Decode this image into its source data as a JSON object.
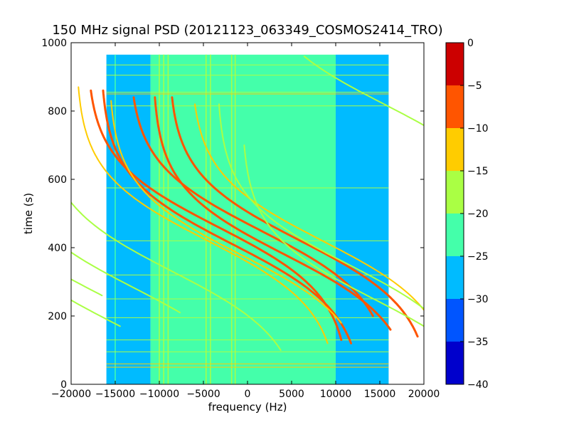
{
  "chart_data": {
    "type": "heatmap",
    "title": "150 MHz signal PSD (20121123_063349_COSMOS2414_TRO)",
    "xlabel": "frequency (Hz)",
    "ylabel": "time (s)",
    "xlim": [
      -20000,
      20000
    ],
    "ylim": [
      0,
      1000
    ],
    "xticks": [
      -20000,
      -15000,
      -10000,
      -5000,
      0,
      5000,
      10000,
      15000,
      20000
    ],
    "yticks": [
      0,
      200,
      400,
      600,
      800,
      1000
    ],
    "data_extent": {
      "x": [
        -16000,
        16000
      ],
      "y": [
        0,
        965
      ]
    },
    "colorbar": {
      "ticks": [
        0,
        -5,
        -10,
        -15,
        -20,
        -25,
        -30,
        -35,
        -40
      ],
      "levels": [
        {
          "range": [
            -40,
            -35
          ],
          "color": "#0000cc"
        },
        {
          "range": [
            -35,
            -30
          ],
          "color": "#0055ff"
        },
        {
          "range": [
            -30,
            -25
          ],
          "color": "#00bbff"
        },
        {
          "range": [
            -25,
            -20
          ],
          "color": "#44ffaa"
        },
        {
          "range": [
            -20,
            -15
          ],
          "color": "#aaff44"
        },
        {
          "range": [
            -15,
            -10
          ],
          "color": "#ffcc00"
        },
        {
          "range": [
            -10,
            -5
          ],
          "color": "#ff5500"
        },
        {
          "range": [
            -5,
            0
          ],
          "color": "#cc0000"
        }
      ]
    },
    "background": {
      "regions": [
        {
          "x": [
            -16000,
            -11000
          ],
          "level": -27
        },
        {
          "x": [
            -11000,
            10000
          ],
          "level": -22
        },
        {
          "x": [
            10000,
            16000
          ],
          "level": -28
        }
      ]
    },
    "vertical_lines": [
      {
        "x": -15000,
        "level": -22
      },
      {
        "x": -10000,
        "level": -18
      },
      {
        "x": -9500,
        "level": -17
      },
      {
        "x": -9000,
        "level": -18
      },
      {
        "x": -4700,
        "level": -19
      },
      {
        "x": -4200,
        "level": -20
      },
      {
        "x": -1800,
        "level": -19
      },
      {
        "x": -1400,
        "level": -18
      }
    ],
    "horizontal_lines": [
      {
        "y": 50,
        "level": -15
      },
      {
        "y": 60,
        "level": -12
      },
      {
        "y": 95,
        "level": -18
      },
      {
        "y": 130,
        "level": -18
      },
      {
        "y": 195,
        "level": -17
      },
      {
        "y": 250,
        "level": -19
      },
      {
        "y": 320,
        "level": -18
      },
      {
        "y": 420,
        "level": -19
      },
      {
        "y": 575,
        "level": -19
      },
      {
        "y": 815,
        "level": -19
      },
      {
        "y": 850,
        "level": -13
      },
      {
        "y": 855,
        "level": -16
      },
      {
        "y": 905,
        "level": -18
      },
      {
        "y": 935,
        "level": -18
      }
    ],
    "traces": [
      {
        "x0": -15200,
        "t0": 180,
        "y_start": 170,
        "y_end": 600,
        "level": -18,
        "width": 2
      },
      {
        "x0": -16500,
        "t0": 260,
        "y_start": 260,
        "y_end": 760,
        "level": -18,
        "width": 2
      },
      {
        "x0": -12700,
        "t0": 280,
        "y_start": 210,
        "y_end": 900,
        "level": -18,
        "width": 2
      },
      {
        "x0": -8500,
        "t0": 330,
        "y_start": 100,
        "y_end": 960,
        "level": -17,
        "width": 2
      },
      {
        "x0": -4500,
        "t0": 420,
        "y_start": 120,
        "y_end": 870,
        "level": -15,
        "width": 2
      },
      {
        "x0": -3300,
        "t0": 460,
        "y_start": 130,
        "y_end": 860,
        "level": -9,
        "width": 3
      },
      {
        "x0": -1700,
        "t0": 410,
        "y_start": 120,
        "y_end": 860,
        "level": -10,
        "width": 3
      },
      {
        "x0": -800,
        "t0": 380,
        "y_start": 180,
        "y_end": 830,
        "level": -12,
        "width": 2
      },
      {
        "x0": 1500,
        "t0": 450,
        "y_start": 200,
        "y_end": 840,
        "level": -7,
        "width": 3
      },
      {
        "x0": 4200,
        "t0": 380,
        "y_start": 160,
        "y_end": 840,
        "level": -8,
        "width": 3
      },
      {
        "x0": 6000,
        "t0": 420,
        "y_start": 140,
        "y_end": 840,
        "level": -9,
        "width": 3
      },
      {
        "x0": 8500,
        "t0": 420,
        "y_start": 150,
        "y_end": 820,
        "level": -12,
        "width": 2
      },
      {
        "x0": 11500,
        "t0": 350,
        "y_start": 200,
        "y_end": 820,
        "level": -18,
        "width": 2
      },
      {
        "x0": 14300,
        "t0": 250,
        "y_start": 170,
        "y_end": 700,
        "level": -19,
        "width": 2
      },
      {
        "x0": 15500,
        "t0": 820,
        "y_start": 600,
        "y_end": 960,
        "level": -18,
        "width": 2
      }
    ]
  }
}
